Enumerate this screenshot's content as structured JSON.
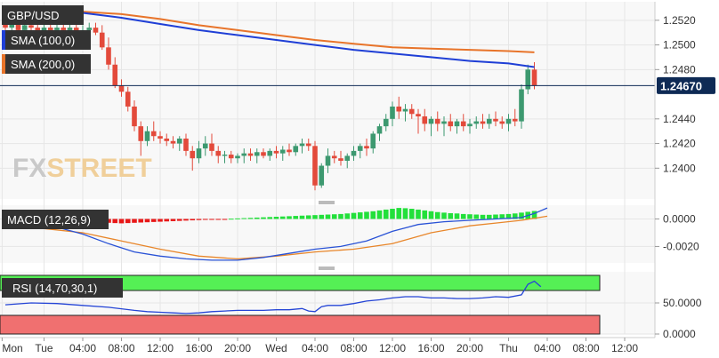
{
  "colors": {
    "up": "#3d9970",
    "down": "#e34a3b",
    "sma100": "#1f3fd6",
    "sma200": "#e8742a",
    "macd_line": "#2952d6",
    "signal_line": "#e8862a",
    "hist_pos": "#22e03a",
    "hist_neg": "#e81818",
    "rsi_line": "#2545d6",
    "rsi_over": "#55f055",
    "rsi_under": "#f07070",
    "price_tag": "#0e2a55",
    "grid": "#e6e6e6",
    "panel_bg": "#f8f8f8",
    "legend_bg": "#333333"
  },
  "watermark": {
    "fx": "FX",
    "street": "STREET"
  },
  "price_panel": {
    "symbol": "GBP/USD",
    "legend": [
      "SMA (100,0)",
      "SMA (200,0)"
    ],
    "current_price": "1.24670",
    "current_price_value": 1.2467,
    "ylim": [
      1.2375,
      1.2535
    ],
    "ticks": [
      {
        "v": 1.252,
        "label": "1.2520"
      },
      {
        "v": 1.25,
        "label": "1.2500"
      },
      {
        "v": 1.248,
        "label": "1.2480"
      },
      {
        "v": 1.244,
        "label": "1.2440"
      },
      {
        "v": 1.242,
        "label": "1.2420"
      },
      {
        "v": 1.24,
        "label": "1.2400"
      }
    ]
  },
  "macd_panel": {
    "label": "MACD (12,26,9)",
    "ylim": [
      -0.0032,
      0.001
    ],
    "ticks": [
      {
        "v": 0.0,
        "label": "0.0000"
      },
      {
        "v": -0.002,
        "label": "-0.0020"
      }
    ]
  },
  "rsi_panel": {
    "label": "RSI (14,70,30,1)",
    "ylim": [
      0,
      100
    ],
    "upper": 70,
    "lower": 30,
    "ticks": [
      {
        "v": 50,
        "label": "50.0000"
      },
      {
        "v": 0,
        "label": "0.0000"
      }
    ]
  },
  "x_axis": {
    "labels": [
      "Mon",
      "Tue",
      "04:00",
      "08:00",
      "12:00",
      "16:00",
      "20:00",
      "Wed",
      "04:00",
      "08:00",
      "12:00",
      "16:00",
      "20:00",
      "Thu",
      "04:00",
      "08:00",
      "12:00"
    ],
    "label_bars": [
      -0.5,
      6,
      12,
      18,
      24,
      30,
      36,
      42,
      48,
      54,
      60,
      66,
      72,
      78,
      84,
      90,
      96
    ]
  },
  "chart_data": {
    "type": "candlestick",
    "title": "GBP/USD",
    "interval_hours": 1,
    "candles": [
      [
        1.252,
        1.2528,
        1.2512,
        1.2514
      ],
      [
        1.2514,
        1.2522,
        1.2508,
        1.2518
      ],
      [
        1.2518,
        1.2524,
        1.251,
        1.2512
      ],
      [
        1.2512,
        1.252,
        1.2508,
        1.2516
      ],
      [
        1.2516,
        1.2522,
        1.251,
        1.2514
      ],
      [
        1.2514,
        1.252,
        1.2506,
        1.251
      ],
      [
        1.251,
        1.2518,
        1.2506,
        1.2514
      ],
      [
        1.2514,
        1.252,
        1.2508,
        1.2512
      ],
      [
        1.2512,
        1.2518,
        1.2506,
        1.2514
      ],
      [
        1.2514,
        1.252,
        1.2508,
        1.2512
      ],
      [
        1.2512,
        1.2518,
        1.2506,
        1.2514
      ],
      [
        1.2514,
        1.2518,
        1.2508,
        1.251
      ],
      [
        1.251,
        1.2516,
        1.2504,
        1.2512
      ],
      [
        1.2512,
        1.2518,
        1.2506,
        1.2514
      ],
      [
        1.2514,
        1.2518,
        1.2508,
        1.251
      ],
      [
        1.251,
        1.2516,
        1.2496,
        1.2498
      ],
      [
        1.2498,
        1.2506,
        1.248,
        1.2484
      ],
      [
        1.2484,
        1.249,
        1.2465,
        1.2467
      ],
      [
        1.2467,
        1.2472,
        1.2458,
        1.2462
      ],
      [
        1.2462,
        1.2466,
        1.2446,
        1.245
      ],
      [
        1.245,
        1.2455,
        1.243,
        1.2434
      ],
      [
        1.2434,
        1.2438,
        1.241,
        1.2422
      ],
      [
        1.2422,
        1.2434,
        1.2418,
        1.243
      ],
      [
        1.243,
        1.2438,
        1.2422,
        1.2426
      ],
      [
        1.2426,
        1.243,
        1.242,
        1.2424
      ],
      [
        1.2424,
        1.2428,
        1.2418,
        1.2422
      ],
      [
        1.2422,
        1.2426,
        1.2416,
        1.242
      ],
      [
        1.242,
        1.2426,
        1.2414,
        1.2424
      ],
      [
        1.2424,
        1.2428,
        1.241,
        1.2414
      ],
      [
        1.2414,
        1.2418,
        1.2398,
        1.2408
      ],
      [
        1.2408,
        1.2422,
        1.2404,
        1.2416
      ],
      [
        1.2416,
        1.2426,
        1.241,
        1.242
      ],
      [
        1.242,
        1.2428,
        1.241,
        1.2414
      ],
      [
        1.2414,
        1.2418,
        1.2404,
        1.241
      ],
      [
        1.241,
        1.2414,
        1.2404,
        1.2411
      ],
      [
        1.2411,
        1.2414,
        1.2404,
        1.2408
      ],
      [
        1.2408,
        1.2412,
        1.2404,
        1.241
      ],
      [
        1.241,
        1.2416,
        1.2404,
        1.2412
      ],
      [
        1.2412,
        1.2416,
        1.2406,
        1.241
      ],
      [
        1.241,
        1.2416,
        1.2404,
        1.2413
      ],
      [
        1.2413,
        1.2416,
        1.2408,
        1.241
      ],
      [
        1.241,
        1.2416,
        1.2406,
        1.2414
      ],
      [
        1.2414,
        1.2418,
        1.2408,
        1.2412
      ],
      [
        1.2412,
        1.2418,
        1.2406,
        1.2415
      ],
      [
        1.2415,
        1.242,
        1.241,
        1.2413
      ],
      [
        1.2413,
        1.242,
        1.241,
        1.2418
      ],
      [
        1.2418,
        1.2424,
        1.2412,
        1.242
      ],
      [
        1.242,
        1.2424,
        1.2414,
        1.2418
      ],
      [
        1.2418,
        1.2422,
        1.2382,
        1.2386
      ],
      [
        1.2386,
        1.2404,
        1.2384,
        1.2402
      ],
      [
        1.2402,
        1.2416,
        1.2396,
        1.241
      ],
      [
        1.241,
        1.2414,
        1.2404,
        1.2408
      ],
      [
        1.2408,
        1.2414,
        1.2402,
        1.2406
      ],
      [
        1.2406,
        1.2412,
        1.24,
        1.241
      ],
      [
        1.241,
        1.2418,
        1.2406,
        1.2414
      ],
      [
        1.2414,
        1.242,
        1.2408,
        1.2418
      ],
      [
        1.2418,
        1.2424,
        1.241,
        1.2416
      ],
      [
        1.2416,
        1.243,
        1.2412,
        1.2428
      ],
      [
        1.2428,
        1.2436,
        1.2422,
        1.2434
      ],
      [
        1.2434,
        1.2444,
        1.243,
        1.244
      ],
      [
        1.244,
        1.2454,
        1.2434,
        1.245
      ],
      [
        1.245,
        1.2458,
        1.244,
        1.2446
      ],
      [
        1.2446,
        1.2452,
        1.2438,
        1.2448
      ],
      [
        1.2448,
        1.2452,
        1.244,
        1.2444
      ],
      [
        1.2444,
        1.2448,
        1.2428,
        1.2442
      ],
      [
        1.2442,
        1.2448,
        1.243,
        1.2436
      ],
      [
        1.2436,
        1.2442,
        1.2426,
        1.244
      ],
      [
        1.244,
        1.2446,
        1.243,
        1.2436
      ],
      [
        1.2436,
        1.2442,
        1.2426,
        1.2438
      ],
      [
        1.2438,
        1.2444,
        1.243,
        1.2434
      ],
      [
        1.2434,
        1.244,
        1.2428,
        1.2438
      ],
      [
        1.2438,
        1.2444,
        1.243,
        1.2434
      ],
      [
        1.2434,
        1.244,
        1.2428,
        1.2436
      ],
      [
        1.2436,
        1.2442,
        1.2432,
        1.2438
      ],
      [
        1.2438,
        1.2444,
        1.2432,
        1.2436
      ],
      [
        1.2436,
        1.2444,
        1.2432,
        1.244
      ],
      [
        1.244,
        1.2446,
        1.2434,
        1.2438
      ],
      [
        1.2438,
        1.2442,
        1.2432,
        1.2436
      ],
      [
        1.2436,
        1.2444,
        1.243,
        1.244
      ],
      [
        1.244,
        1.2448,
        1.2434,
        1.2438
      ],
      [
        1.2438,
        1.2468,
        1.2432,
        1.2464
      ],
      [
        1.2464,
        1.2484,
        1.246,
        1.248
      ],
      [
        1.248,
        1.2486,
        1.2464,
        1.2467
      ]
    ],
    "sma100": [
      [
        0,
        1.2527
      ],
      [
        6,
        1.2528
      ],
      [
        12,
        1.2526
      ],
      [
        18,
        1.2522
      ],
      [
        24,
        1.2517
      ],
      [
        30,
        1.2512
      ],
      [
        36,
        1.2508
      ],
      [
        42,
        1.2504
      ],
      [
        48,
        1.25
      ],
      [
        54,
        1.2496
      ],
      [
        60,
        1.2493
      ],
      [
        66,
        1.249
      ],
      [
        72,
        1.2487
      ],
      [
        78,
        1.2485
      ],
      [
        82,
        1.2482
      ]
    ],
    "sma200": [
      [
        0,
        1.2531
      ],
      [
        6,
        1.253
      ],
      [
        12,
        1.2527
      ],
      [
        18,
        1.2525
      ],
      [
        24,
        1.2521
      ],
      [
        30,
        1.2516
      ],
      [
        36,
        1.2512
      ],
      [
        42,
        1.2508
      ],
      [
        48,
        1.2504
      ],
      [
        54,
        1.2501
      ],
      [
        60,
        1.2498
      ],
      [
        66,
        1.2497
      ],
      [
        72,
        1.2496
      ],
      [
        78,
        1.2495
      ],
      [
        82,
        1.2494
      ]
    ],
    "macd_line": [
      [
        0,
        -0.0004
      ],
      [
        4,
        -0.0004
      ],
      [
        8,
        -0.0006
      ],
      [
        12,
        -0.0011
      ],
      [
        16,
        -0.0018
      ],
      [
        20,
        -0.0024
      ],
      [
        24,
        -0.0027
      ],
      [
        28,
        -0.0029
      ],
      [
        32,
        -0.003
      ],
      [
        36,
        -0.003
      ],
      [
        40,
        -0.0028
      ],
      [
        44,
        -0.0025
      ],
      [
        48,
        -0.0022
      ],
      [
        52,
        -0.002
      ],
      [
        56,
        -0.0016
      ],
      [
        60,
        -0.0009
      ],
      [
        64,
        -0.0004
      ],
      [
        68,
        -0.0002
      ],
      [
        72,
        -0.0001
      ],
      [
        76,
        0.0
      ],
      [
        80,
        0.0001
      ],
      [
        82,
        0.0004
      ],
      [
        84,
        0.0008
      ]
    ],
    "signal_line": [
      [
        0,
        -0.0007
      ],
      [
        6,
        -0.0007
      ],
      [
        12,
        -0.001
      ],
      [
        18,
        -0.0016
      ],
      [
        24,
        -0.0022
      ],
      [
        30,
        -0.0027
      ],
      [
        36,
        -0.0029
      ],
      [
        42,
        -0.0027
      ],
      [
        48,
        -0.0024
      ],
      [
        54,
        -0.0022
      ],
      [
        60,
        -0.0018
      ],
      [
        66,
        -0.001
      ],
      [
        72,
        -0.0005
      ],
      [
        76,
        -0.0003
      ],
      [
        80,
        -0.0001
      ],
      [
        84,
        0.0002
      ]
    ],
    "macd_hist": [
      3e-05,
      3e-05,
      2e-05,
      2e-05,
      2e-05,
      1e-05,
      1e-05,
      1e-05,
      0.0,
      0.0,
      -4e-05,
      -8e-05,
      -0.00012,
      -0.00016,
      -0.0002,
      -0.00024,
      -0.00028,
      -0.0003,
      -0.00032,
      -0.0003,
      -0.00028,
      -0.00026,
      -0.00024,
      -0.00022,
      -0.0002,
      -0.00018,
      -0.00016,
      -0.00014,
      -0.00012,
      -0.0001,
      -8e-05,
      -6e-05,
      -4e-05,
      -2e-05,
      -1e-05,
      2e-05,
      4e-05,
      6e-05,
      8e-05,
      0.0001,
      0.00012,
      0.00014,
      0.00016,
      0.00018,
      0.0002,
      0.00022,
      0.00024,
      0.00026,
      0.00028,
      0.0003,
      0.00032,
      0.00034,
      0.00036,
      0.0004,
      0.00044,
      0.00048,
      0.00052,
      0.00056,
      0.00062,
      0.00068,
      0.00074,
      0.0008,
      0.00078,
      0.00074,
      0.00068,
      0.00062,
      0.00056,
      0.0005,
      0.00046,
      0.00042,
      0.0004,
      0.00036,
      0.00034,
      0.00032,
      0.0003,
      0.0003,
      0.00032,
      0.00034,
      0.00036,
      0.0004,
      0.00046,
      0.00052,
      0.00058
    ],
    "rsi": [
      [
        0,
        47
      ],
      [
        4,
        50
      ],
      [
        8,
        49
      ],
      [
        12,
        46
      ],
      [
        16,
        43
      ],
      [
        20,
        38
      ],
      [
        22,
        36
      ],
      [
        24,
        35
      ],
      [
        26,
        34
      ],
      [
        28,
        33
      ],
      [
        30,
        34
      ],
      [
        32,
        36
      ],
      [
        34,
        37
      ],
      [
        36,
        38
      ],
      [
        38,
        38
      ],
      [
        40,
        38
      ],
      [
        42,
        39
      ],
      [
        44,
        39
      ],
      [
        46,
        41
      ],
      [
        47,
        37
      ],
      [
        48,
        36
      ],
      [
        49,
        44
      ],
      [
        50,
        46
      ],
      [
        52,
        46
      ],
      [
        54,
        49
      ],
      [
        56,
        53
      ],
      [
        58,
        55
      ],
      [
        60,
        58
      ],
      [
        62,
        60
      ],
      [
        64,
        60
      ],
      [
        66,
        58
      ],
      [
        68,
        58
      ],
      [
        70,
        57
      ],
      [
        72,
        57
      ],
      [
        74,
        58
      ],
      [
        76,
        60
      ],
      [
        78,
        59
      ],
      [
        80,
        63
      ],
      [
        81,
        80
      ],
      [
        82,
        85
      ],
      [
        83,
        76
      ]
    ]
  }
}
